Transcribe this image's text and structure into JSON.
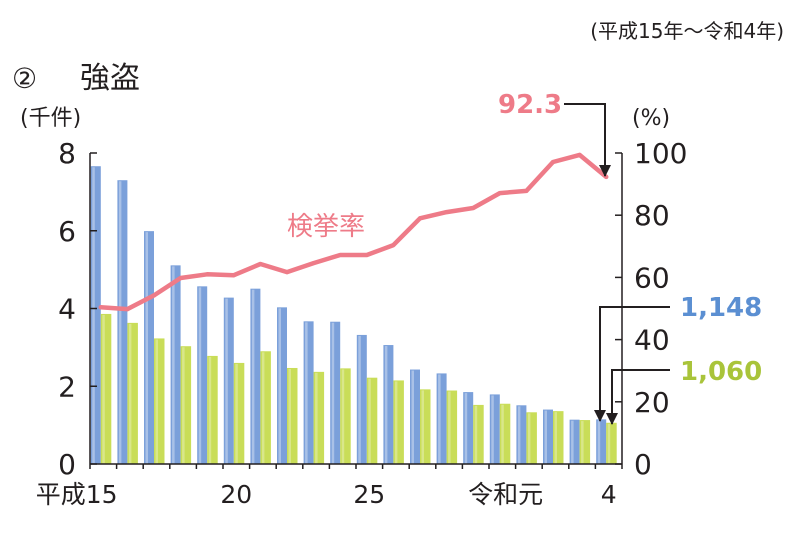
{
  "chart_data": {
    "type": "bar",
    "title_number": "②",
    "title": "強盗",
    "period": "(平成15年～令和4年)",
    "y_left": {
      "unit": "(千件)",
      "min": 0,
      "max": 8,
      "ticks": [
        0,
        2,
        4,
        6,
        8
      ]
    },
    "y_right": {
      "unit": "(%)",
      "min": 0,
      "max": 100,
      "ticks": [
        0,
        20,
        40,
        60,
        80,
        100
      ]
    },
    "x_tick_labels": [
      {
        "index": 0,
        "label": "平成15"
      },
      {
        "index": 5,
        "label": "20"
      },
      {
        "index": 10,
        "label": "25"
      },
      {
        "index": 16,
        "label": "令和元"
      },
      {
        "index": 19,
        "label": "4"
      }
    ],
    "bars_blue": {
      "color": "#7ba0da",
      "values": [
        7.66,
        7.3,
        5.99,
        5.11,
        4.57,
        4.28,
        4.51,
        4.03,
        3.67,
        3.66,
        3.32,
        3.06,
        2.43,
        2.33,
        1.85,
        1.79,
        1.51,
        1.4,
        1.14,
        1.148
      ]
    },
    "bars_green": {
      "color": "#c9dd58",
      "values": [
        3.86,
        3.63,
        3.23,
        3.03,
        2.78,
        2.6,
        2.9,
        2.47,
        2.37,
        2.46,
        2.22,
        2.15,
        1.92,
        1.89,
        1.52,
        1.55,
        1.33,
        1.36,
        1.13,
        1.06
      ]
    },
    "line": {
      "label": "検挙率",
      "color": "#ee7b88",
      "values": [
        50.4,
        49.8,
        54.2,
        59.8,
        61.0,
        60.7,
        64.3,
        61.7,
        64.6,
        67.2,
        67.2,
        70.4,
        79.0,
        81.0,
        82.3,
        87.1,
        87.8,
        97.1,
        99.4,
        92.3
      ]
    },
    "annotations": {
      "rate_last": "92.3",
      "rate_color": "#ee7b88",
      "blue_last": "1,148",
      "blue_color": "#5b8fd2",
      "green_last": "1,060",
      "green_color": "#a9c43a"
    }
  }
}
